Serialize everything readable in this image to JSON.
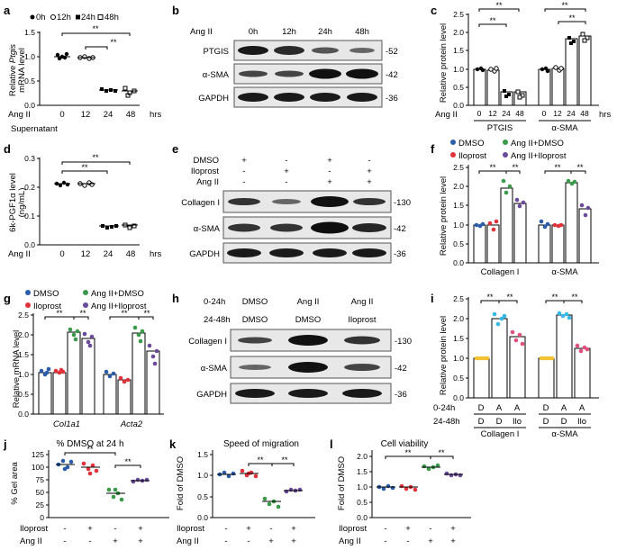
{
  "panels": {
    "a": {
      "label": "a",
      "legend": [
        "0h",
        "12h",
        "24h",
        "48h"
      ],
      "ylabel_italic": "Ptgis",
      "ylabel_prefix": "Relative ",
      "ylabel_line2": "mRNA level",
      "y_ticks": [
        "0.0",
        "0.5",
        "1.0",
        "1.5"
      ],
      "x_row_label": "Ang II",
      "x_ticks": [
        "0",
        "12",
        "24",
        "48"
      ],
      "x_unit": "hrs",
      "sig": [
        "**",
        "**"
      ],
      "values": [
        1.0,
        0.98,
        0.3,
        0.25
      ]
    },
    "b": {
      "label": "b",
      "header": "Ang II",
      "lanes": [
        "0h",
        "12h",
        "24h",
        "48h"
      ],
      "rows": [
        {
          "name": "PTGIS",
          "mw": "-52"
        },
        {
          "name": "α-SMA",
          "mw": "-42"
        },
        {
          "name": "GAPDH",
          "mw": "-36"
        }
      ]
    },
    "c": {
      "label": "c",
      "ylabel": "Relative protein level",
      "y_ticks": [
        "0.0",
        "0.5",
        "1.0",
        "1.5",
        "2.0",
        "2.5"
      ],
      "x_row_label": "Ang II",
      "x_ticks": [
        "0",
        "12",
        "24",
        "48",
        "0",
        "12",
        "24",
        "48"
      ],
      "x_unit": "hrs",
      "groups": [
        "PTGIS",
        "α-SMA"
      ],
      "sig": [
        "**",
        "**",
        "**",
        "**"
      ],
      "values": [
        1.0,
        0.97,
        0.38,
        0.37,
        1.0,
        1.02,
        1.82,
        1.88
      ]
    },
    "d": {
      "label": "d",
      "supernatant": "Supernatant",
      "ylabel": "6k-PGF1α level",
      "ylabel_line2": "(ng/mL)",
      "y_ticks": [
        "0.0",
        "0.1",
        "0.2",
        "0.3"
      ],
      "x_row_label": "Ang II",
      "x_ticks": [
        "0",
        "12",
        "24",
        "48"
      ],
      "x_unit": "hrs",
      "sig": [
        "**",
        "**"
      ],
      "values": [
        0.245,
        0.245,
        0.068,
        0.07
      ]
    },
    "e": {
      "label": "e",
      "treat_rows": [
        {
          "name": "DMSO",
          "marks": [
            "+",
            "-",
            "+",
            "-"
          ]
        },
        {
          "name": "Iloprost",
          "marks": [
            "-",
            "+",
            "-",
            "+"
          ]
        },
        {
          "name": "Ang II",
          "marks": [
            "-",
            "-",
            "+",
            "+"
          ]
        }
      ],
      "rows": [
        {
          "name": "Collagen I",
          "mw": "-130"
        },
        {
          "name": "α-SMA",
          "mw": "-42"
        },
        {
          "name": "GAPDH",
          "mw": "-36"
        }
      ]
    },
    "f": {
      "label": "f",
      "legend": [
        "DMSO",
        "Ang II+DMSO",
        "Iloprost",
        "Ang II+Iloprost"
      ],
      "ylabel": "Relative protein level",
      "y_ticks": [
        "0.0",
        "0.5",
        "1.0",
        "1.5",
        "2.0",
        "2.5"
      ],
      "groups": [
        "Collagen I",
        "α-SMA"
      ],
      "sig": [
        "**",
        "**",
        "**",
        "**"
      ],
      "values": [
        1.0,
        1.0,
        1.95,
        1.55,
        1.0,
        1.0,
        2.1,
        1.4
      ]
    },
    "g": {
      "label": "g",
      "legend": [
        "DMSO",
        "Ang II+DMSO",
        "Iloprost",
        "Ang II+Iloprost"
      ],
      "ylabel": "Relative mRNA level",
      "y_ticks": [
        "0.0",
        "0.5",
        "1.0",
        "1.5",
        "2.0",
        "2.5"
      ],
      "groups": [
        "Col1a1",
        "Acta2"
      ],
      "sig": [
        "**",
        "**",
        "**",
        "**"
      ],
      "values": [
        1.05,
        1.05,
        2.25,
        1.95,
        1.0,
        0.85,
        2.2,
        1.6
      ]
    },
    "h": {
      "label": "h",
      "row1_label": "0-24h",
      "row2_label": "24-48h",
      "lane_row1": [
        "DMSO",
        "Ang II",
        "Ang II"
      ],
      "lane_row2": [
        "DMSO",
        "DMSO",
        "Iloprost"
      ],
      "rows": [
        {
          "name": "Collagen I",
          "mw": "-130"
        },
        {
          "name": "α-SMA",
          "mw": "-42"
        },
        {
          "name": "GAPDH",
          "mw": "-36"
        }
      ]
    },
    "i": {
      "label": "i",
      "ylabel": "Relative protein level",
      "y_ticks": [
        "0.0",
        "0.5",
        "1.0",
        "1.5",
        "2.0",
        "2.5"
      ],
      "row1_label": "0-24h",
      "row2_label": "24-48h",
      "row1": [
        "D",
        "A",
        "A",
        "D",
        "A",
        "A"
      ],
      "row2": [
        "D",
        "D",
        "Ilo",
        "D",
        "D",
        "Ilo"
      ],
      "groups": [
        "Collagen I",
        "α-SMA"
      ],
      "sig": [
        "**",
        "**",
        "**",
        "**"
      ],
      "values": [
        1.0,
        2.0,
        1.55,
        1.0,
        2.1,
        1.25
      ]
    },
    "j": {
      "label": "j",
      "title": "% DMSO at 24 h",
      "ylabel": "% Gel area",
      "y_ticks": [
        "0",
        "25",
        "50",
        "75",
        "100",
        "125"
      ],
      "iloprost_label": "Iloprost",
      "angii_label": "Ang II",
      "iloprost_marks": [
        "-",
        "+",
        "-",
        "+"
      ],
      "angii_marks": [
        "-",
        "-",
        "+",
        "+"
      ],
      "sig": [
        "**",
        "**"
      ],
      "values": [
        105,
        100,
        52,
        75
      ]
    },
    "k": {
      "label": "k",
      "title": "Speed of migration",
      "ylabel": "Fold of DMSO",
      "y_ticks": [
        "0.0",
        "0.5",
        "1.0",
        "1.5"
      ],
      "iloprost_label": "Iloprost",
      "angii_label": "Ang II",
      "iloprost_marks": [
        "-",
        "+",
        "-",
        "+"
      ],
      "angii_marks": [
        "-",
        "-",
        "+",
        "+"
      ],
      "sig": [
        "**",
        "**"
      ],
      "values": [
        1.03,
        1.05,
        0.38,
        0.65
      ]
    },
    "l": {
      "label": "l",
      "title": "Cell viability",
      "ylabel": "Fold of DMSO",
      "y_ticks": [
        "0.0",
        "0.5",
        "1.0",
        "1.5",
        "2.0"
      ],
      "iloprost_label": "Iloprost",
      "angii_label": "Ang II",
      "iloprost_marks": [
        "-",
        "+",
        "-",
        "+"
      ],
      "angii_marks": [
        "-",
        "-",
        "+",
        "+"
      ],
      "sig": [
        "**",
        "**"
      ],
      "values": [
        1.0,
        1.0,
        1.62,
        1.4
      ]
    }
  },
  "colors": {
    "dmso": "#2a5caa",
    "iloprost": "#e0323a",
    "angii_dmso": "#3a9a4a",
    "angii_iloprost": "#6a4a9a",
    "cyan": "#35b8e6",
    "yellow": "#f1c232",
    "pink": "#e0507a",
    "blot_band": "#1a1a1a"
  }
}
